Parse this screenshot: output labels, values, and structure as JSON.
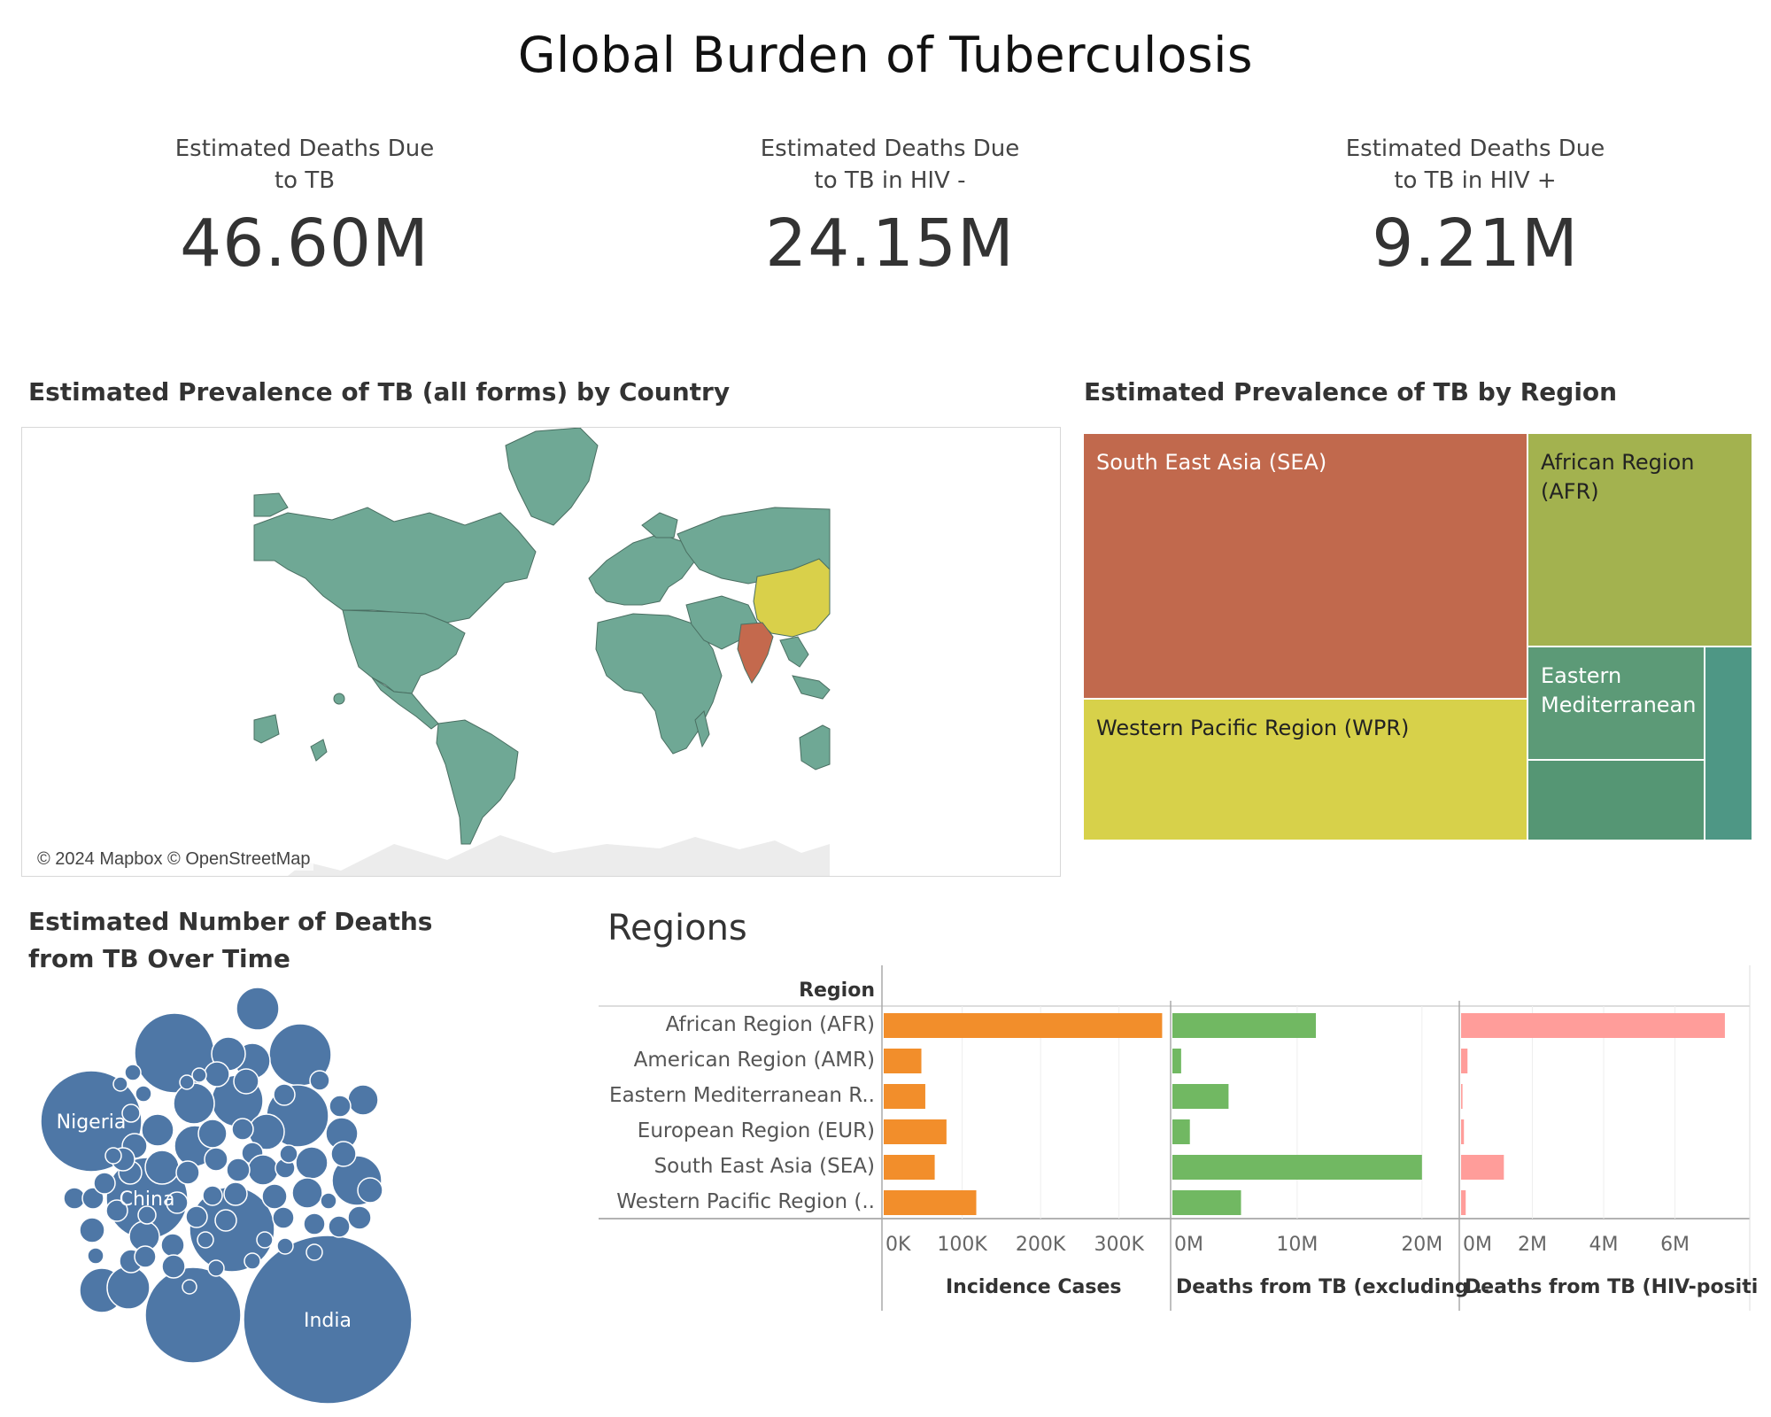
{
  "dashboard": {
    "title": "Global Burden of Tuberculosis"
  },
  "kpis": [
    {
      "label": "Estimated Deaths Due\nto TB",
      "value": "46.60M"
    },
    {
      "label": "Estimated Deaths Due\nto TB in HIV -",
      "value": "24.15M"
    },
    {
      "label": "Estimated Deaths Due\nto TB in HIV +",
      "value": "9.21M"
    }
  ],
  "map": {
    "title": "Estimated Prevalence of TB (all forms) by Country",
    "credit": "© 2024 Mapbox © OpenStreetMap",
    "colors": {
      "base": "#6fa895",
      "china": "#d9d04a",
      "india": "#c4694d",
      "land_empty": "#ececec"
    }
  },
  "treemap": {
    "title": "Estimated Prevalence of TB  by Region",
    "tiles": [
      {
        "label": "South East Asia (SEA)",
        "color": "#c1694d",
        "text_color": "#ffffff"
      },
      {
        "label": "African Region\n(AFR)",
        "color": "#a3b24f",
        "text_color": "#222222"
      },
      {
        "label": "Western Pacific Region (WPR)",
        "color": "#d7d14a",
        "text_color": "#222222"
      },
      {
        "label": "Eastern\nMediterranean",
        "color": "#5c9a77",
        "text_color": "#ffffff"
      },
      {
        "label": "",
        "color": "#559674",
        "text_color": "#ffffff"
      },
      {
        "label": "",
        "color": "#4e9785",
        "text_color": "#ffffff"
      }
    ]
  },
  "bubbles": {
    "title": "Estimated Number of Deaths\nfrom TB  Over Time",
    "color": "#4e77a6",
    "labels": [
      "Nigeria",
      "China",
      "India"
    ]
  },
  "chart_data": {
    "type": "bar",
    "title": "Regions",
    "row_header": "Region",
    "categories": [
      "African Region (AFR)",
      "American Region (AMR)",
      "Eastern Mediterranean R..",
      "European Region (EUR)",
      "South East Asia (SEA)",
      "Western Pacific Region (.."
    ],
    "series": [
      {
        "name": "Incidence Cases",
        "color": "#f28e2b",
        "ticks": [
          "0K",
          "100K",
          "200K",
          "300K"
        ],
        "tick_values": [
          0,
          100000,
          200000,
          300000
        ],
        "xlim": [
          0,
          350000
        ],
        "values": [
          355000,
          48000,
          53000,
          80000,
          65000,
          118000
        ]
      },
      {
        "name": "Deaths from TB (excluding ..",
        "color": "#71b862",
        "ticks": [
          "0M",
          "10M",
          "20M"
        ],
        "tick_values": [
          0,
          10000000,
          20000000
        ],
        "xlim": [
          0,
          22000000
        ],
        "values": [
          11500000,
          700000,
          4500000,
          1400000,
          20000000,
          5500000
        ]
      },
      {
        "name": "Deaths from TB (HIV-positi..",
        "color": "#ff9d9a",
        "ticks": [
          "0M",
          "2M",
          "4M",
          "6M"
        ],
        "tick_values": [
          0,
          2000000,
          4000000,
          6000000
        ],
        "xlim": [
          0,
          7700000
        ],
        "values": [
          7400000,
          180000,
          40000,
          80000,
          1200000,
          130000
        ]
      }
    ]
  }
}
